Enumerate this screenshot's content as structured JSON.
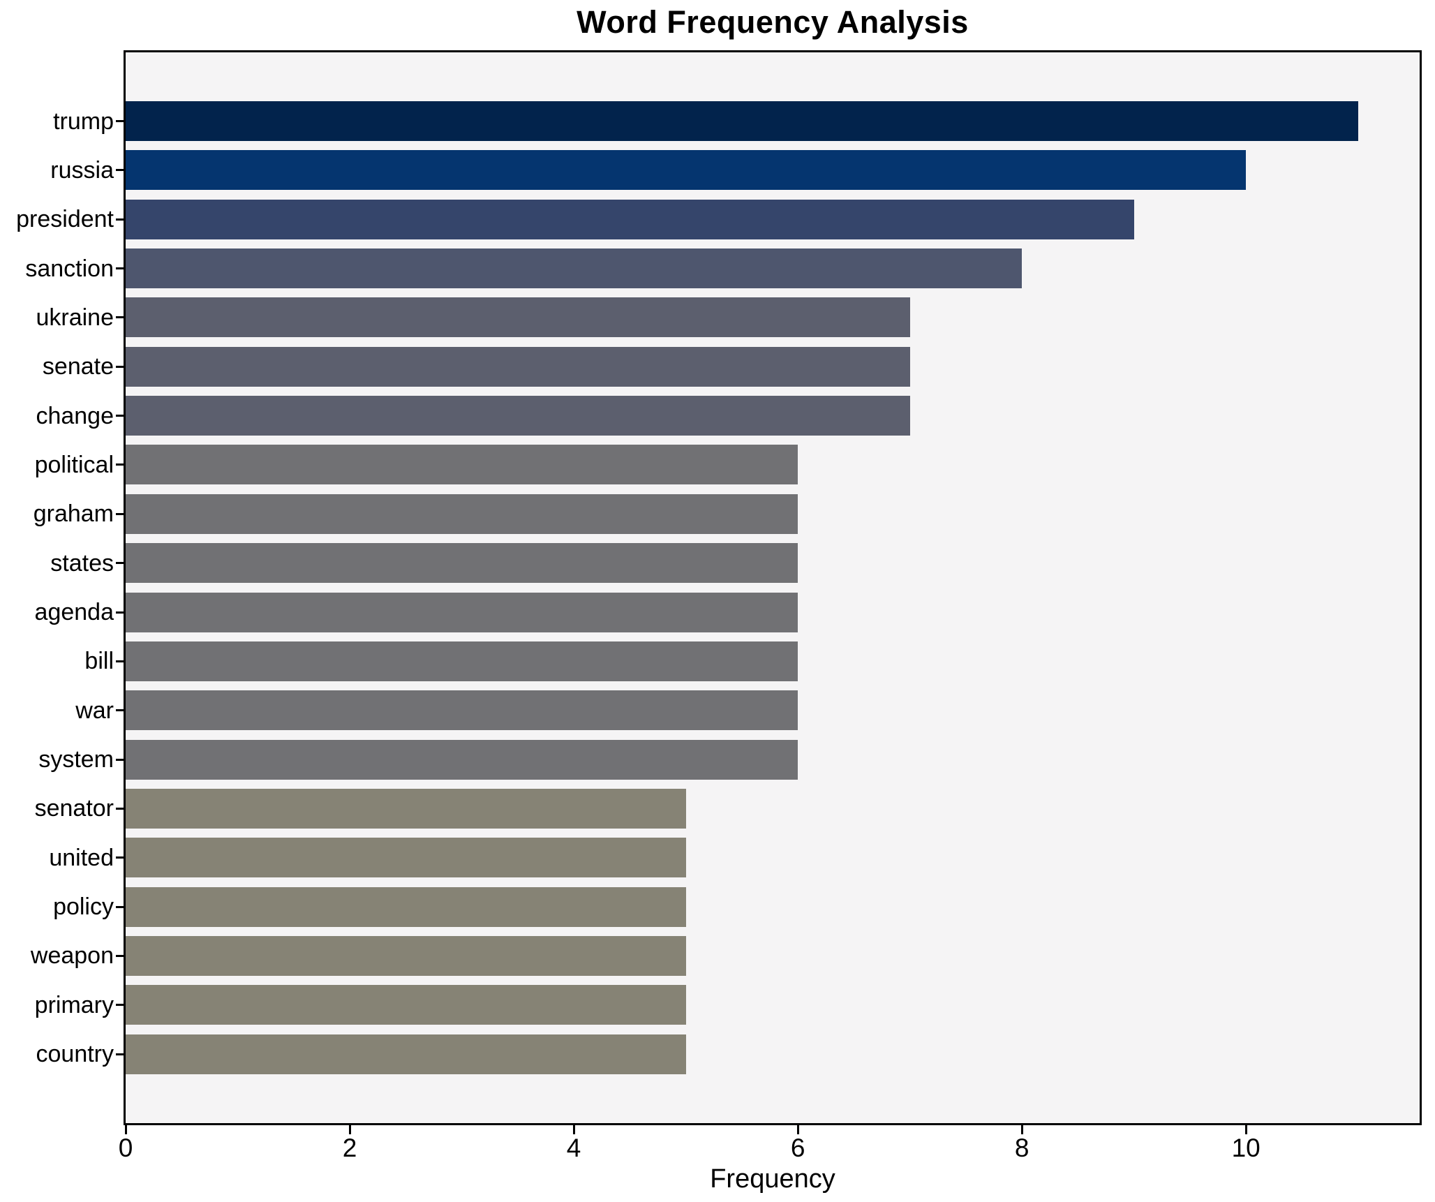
{
  "title": "Word Frequency Analysis",
  "x_axis_label": "Frequency",
  "chart_data": {
    "type": "bar",
    "orientation": "horizontal",
    "title": "Word Frequency Analysis",
    "xlabel": "Frequency",
    "ylabel": "",
    "categories": [
      "trump",
      "russia",
      "president",
      "sanction",
      "ukraine",
      "senate",
      "change",
      "political",
      "graham",
      "states",
      "agenda",
      "bill",
      "war",
      "system",
      "senator",
      "united",
      "policy",
      "weapon",
      "primary",
      "country"
    ],
    "values": [
      11,
      10,
      9,
      8,
      7,
      7,
      7,
      6,
      6,
      6,
      6,
      6,
      6,
      6,
      5,
      5,
      5,
      5,
      5,
      5
    ],
    "bar_colors": [
      "#02234c",
      "#05356f",
      "#35456b",
      "#4e566e",
      "#5c5f6e",
      "#5c5f6e",
      "#5c5f6e",
      "#717174",
      "#717174",
      "#717174",
      "#717174",
      "#717174",
      "#717174",
      "#717174",
      "#868375",
      "#868375",
      "#868375",
      "#868375",
      "#868375",
      "#868375"
    ],
    "x_ticks": [
      0,
      2,
      4,
      6,
      8,
      10
    ],
    "xlim": [
      0,
      11.55
    ],
    "grid": false,
    "legend": null,
    "plot_background": "#f5f4f5",
    "figure_background": "#ffffff",
    "spine_color": "#000000"
  }
}
